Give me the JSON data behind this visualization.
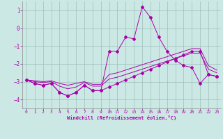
{
  "xlabel": "Windchill (Refroidissement éolien,°C)",
  "background_color": "#cce8e4",
  "grid_color": "#9bbfba",
  "line_color": "#aa00aa",
  "spine_color": "#888888",
  "xlim": [
    -0.5,
    23.5
  ],
  "ylim": [
    -4.5,
    1.5
  ],
  "yticks": [
    -4,
    -3,
    -2,
    -1,
    0,
    1
  ],
  "xticks": [
    0,
    1,
    2,
    3,
    4,
    5,
    6,
    7,
    8,
    9,
    10,
    11,
    12,
    13,
    14,
    15,
    16,
    17,
    18,
    19,
    20,
    21,
    22,
    23
  ],
  "series_main": [
    -2.9,
    -3.1,
    -3.2,
    -3.1,
    -3.6,
    -3.8,
    -3.6,
    -3.2,
    -3.5,
    -3.5,
    -1.3,
    -1.3,
    -0.5,
    -0.6,
    1.2,
    0.6,
    -0.5,
    -1.3,
    -1.8,
    -2.1,
    -2.2,
    -3.1,
    -2.6,
    -2.7
  ],
  "series_l2": [
    -2.9,
    -3.1,
    -3.2,
    -3.1,
    -3.6,
    -3.8,
    -3.6,
    -3.2,
    -3.5,
    -3.5,
    -3.3,
    -3.1,
    -2.9,
    -2.7,
    -2.5,
    -2.3,
    -2.1,
    -1.9,
    -1.7,
    -1.5,
    -1.3,
    -1.3,
    -2.6,
    -2.7
  ],
  "series_l3": [
    -2.9,
    -3.0,
    -3.05,
    -3.0,
    -3.25,
    -3.4,
    -3.3,
    -3.05,
    -3.25,
    -3.25,
    -2.85,
    -2.75,
    -2.6,
    -2.45,
    -2.3,
    -2.15,
    -2.0,
    -1.85,
    -1.7,
    -1.55,
    -1.4,
    -1.4,
    -2.3,
    -2.5
  ],
  "series_l4": [
    -2.9,
    -2.95,
    -3.0,
    -2.95,
    -3.1,
    -3.2,
    -3.1,
    -3.0,
    -3.15,
    -3.15,
    -2.6,
    -2.5,
    -2.35,
    -2.2,
    -2.05,
    -1.9,
    -1.75,
    -1.6,
    -1.45,
    -1.3,
    -1.15,
    -1.15,
    -2.1,
    -2.35
  ]
}
